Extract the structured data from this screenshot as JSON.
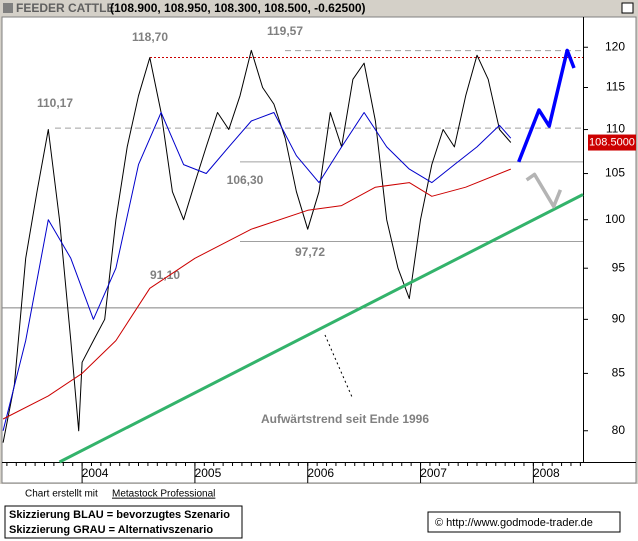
{
  "chart_data": {
    "type": "line",
    "title": "FEEDER CATTLE",
    "subtitle": "(108.900, 108.950, 108.300, 108.500, -0.62500)",
    "log_scale": true,
    "xlim": [
      2003.29,
      2008.44
    ],
    "xticks": [
      2004,
      2005,
      2006,
      2007,
      2008
    ],
    "ylim": [
      77.4,
      123.9
    ],
    "yticks": [
      80,
      85,
      90,
      95,
      100,
      105,
      110,
      115,
      120
    ],
    "series": [
      {
        "color": "#000000",
        "x": [
          2003.3,
          2003.4,
          2003.5,
          2003.6,
          2003.7,
          2003.8,
          2003.9,
          2003.97,
          2004.0,
          2004.1,
          2004.2,
          2004.3,
          2004.4,
          2004.5,
          2004.6,
          2004.7,
          2004.8,
          2004.9,
          2005.0,
          2005.1,
          2005.2,
          2005.3,
          2005.4,
          2005.5,
          2005.6,
          2005.7,
          2005.8,
          2005.9,
          2006.0,
          2006.1,
          2006.2,
          2006.3,
          2006.4,
          2006.5,
          2006.6,
          2006.7,
          2006.8,
          2006.9,
          2007.0,
          2007.1,
          2007.2,
          2007.3,
          2007.4,
          2007.5,
          2007.6,
          2007.7,
          2007.8
        ],
        "values": [
          79,
          84,
          96,
          103,
          110,
          100,
          88,
          80,
          86,
          88,
          90,
          100,
          108,
          114,
          118.7,
          112,
          103,
          100,
          104,
          108,
          112,
          110,
          114,
          119.6,
          115,
          113,
          109,
          103,
          99,
          103,
          112,
          108,
          116,
          118,
          111,
          100,
          95,
          92,
          100,
          106,
          110,
          108,
          114,
          119,
          116,
          110,
          108.5
        ]
      },
      {
        "color": "#0000cc",
        "x": [
          2003.3,
          2003.5,
          2003.7,
          2003.9,
          2004.1,
          2004.3,
          2004.5,
          2004.7,
          2004.9,
          2005.1,
          2005.3,
          2005.5,
          2005.7,
          2005.9,
          2006.1,
          2006.3,
          2006.5,
          2006.7,
          2006.9,
          2007.1,
          2007.3,
          2007.5,
          2007.7,
          2007.8
        ],
        "values": [
          80,
          88,
          100,
          96,
          90,
          95,
          106,
          112,
          106,
          105,
          108,
          111,
          112,
          107,
          104,
          108,
          112,
          108,
          105.5,
          104,
          106,
          108,
          110.5,
          109
        ]
      },
      {
        "color": "#cc0000",
        "x": [
          2003.3,
          2003.7,
          2004.0,
          2004.3,
          2004.6,
          2005.0,
          2005.5,
          2006.0,
          2006.3,
          2006.6,
          2006.9,
          2007.1,
          2007.4,
          2007.8
        ],
        "values": [
          81,
          83,
          85,
          88,
          93,
          96,
          99,
          101,
          101.5,
          103.5,
          104,
          102.5,
          103.5,
          105.5
        ]
      },
      {
        "color": "#33b36b",
        "x": [
          2003.8,
          2008.44
        ],
        "values": [
          77.4,
          102.7
        ]
      },
      {
        "color": "#0000ff",
        "x": [
          2007.87,
          2008.05,
          2008.14,
          2008.3,
          2008.36
        ],
        "values": [
          106.3,
          112.3,
          110.4,
          119.6,
          117.4
        ]
      },
      {
        "color": "#b4b4b4",
        "x": [
          2007.94,
          2008.01,
          2008.18,
          2008.24
        ],
        "values": [
          104.3,
          104.9,
          101.4,
          103.2
        ]
      }
    ],
    "levels": [
      {
        "value": 118.7,
        "label": "118,70",
        "color": "#cc0000"
      },
      {
        "value": 119.57,
        "label": "119,57",
        "color": "#a0a0a0"
      },
      {
        "value": 110.17,
        "label": "110,17",
        "color": "#a0a0a0"
      },
      {
        "value": 106.3,
        "label": "106,30",
        "color": "#a0a0a0"
      },
      {
        "value": 97.72,
        "label": "97,72",
        "color": "#a0a0a0"
      },
      {
        "value": 91.1,
        "label": "91,10",
        "color": "#808080"
      }
    ],
    "last_price": {
      "value": 108.5,
      "label": "108.5000"
    },
    "annotation": "Aufwärtstrend seit Ende 1996",
    "footer": {
      "credit": "Chart erstellt mit",
      "software": "Metastock Professional",
      "legend": [
        "Skizzierung BLAU = bevorzugtes Szenario",
        "Skizzierung GRAU = Alternativszenario"
      ],
      "copyright": "© http://www.godmode-trader.de"
    }
  }
}
